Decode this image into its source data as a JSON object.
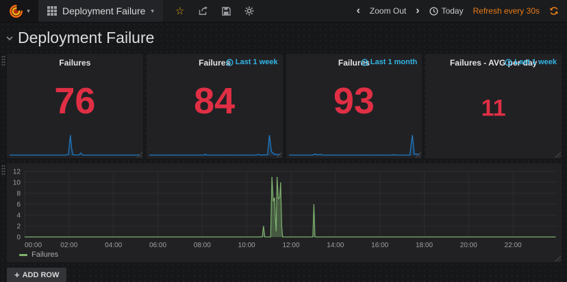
{
  "navbar": {
    "dashboard_title": "Deployment Failure",
    "zoom_out_label": "Zoom Out",
    "today_label": "Today",
    "refresh_label": "Refresh every 30s"
  },
  "page": {
    "title": "Deployment Failure",
    "add_row_label": "ADD ROW"
  },
  "icons": {
    "plus": "+",
    "caret": "▾",
    "chevron_left": "‹",
    "chevron_right": "›",
    "star": "☆"
  },
  "colors": {
    "stat_value_red": "#e02f44",
    "badge_cyan": "#33b5e5",
    "refresh_orange": "#eb7b18",
    "series_green": "#7eb26d",
    "spark_blue": "#1f78c1",
    "panel_bg": "#212124",
    "page_bg": "#161719"
  },
  "chart_data": [
    {
      "type": "stat",
      "panel_title": "Failures",
      "time_badge": "",
      "value": "76",
      "spark_color": "#1f78c1",
      "spark_points": [
        [
          0,
          0.03
        ],
        [
          0.43,
          0.03
        ],
        [
          0.45,
          0.06
        ],
        [
          0.465,
          1
        ],
        [
          0.475,
          0.35
        ],
        [
          0.485,
          0.05
        ],
        [
          0.53,
          0.03
        ],
        [
          0.545,
          0.13
        ],
        [
          0.56,
          0.03
        ],
        [
          1,
          0.03
        ]
      ]
    },
    {
      "type": "stat",
      "panel_title": "Failures",
      "time_badge": "Last 1 week",
      "value": "84",
      "spark_color": "#1f78c1",
      "spark_points": [
        [
          0,
          0.03
        ],
        [
          0.42,
          0.03
        ],
        [
          0.43,
          0.08
        ],
        [
          0.44,
          0.03
        ],
        [
          0.82,
          0.03
        ],
        [
          0.835,
          0.07
        ],
        [
          0.85,
          0.03
        ],
        [
          0.905,
          0.05
        ],
        [
          0.92,
          1
        ],
        [
          0.935,
          0.2
        ],
        [
          0.96,
          0.06
        ],
        [
          1,
          0.06
        ]
      ]
    },
    {
      "type": "stat",
      "panel_title": "Failures",
      "time_badge": "Last 1 month",
      "value": "93",
      "spark_color": "#1f78c1",
      "spark_points": [
        [
          0,
          0.03
        ],
        [
          0.18,
          0.03
        ],
        [
          0.2,
          0.08
        ],
        [
          0.22,
          0.04
        ],
        [
          0.24,
          0.06
        ],
        [
          0.26,
          0.03
        ],
        [
          0.79,
          0.03
        ],
        [
          0.8,
          0.06
        ],
        [
          0.81,
          0.03
        ],
        [
          0.925,
          0.03
        ],
        [
          0.945,
          1
        ],
        [
          0.96,
          0.08
        ],
        [
          1,
          0.08
        ]
      ]
    },
    {
      "type": "stat",
      "panel_title": "Failures - AVG per day",
      "time_badge": "Last 1 week",
      "value": "11",
      "spark_color": "#1f78c1",
      "spark_points": null
    },
    {
      "type": "line",
      "title": "",
      "xlim_hours": [
        0,
        24
      ],
      "ylim": [
        0,
        12
      ],
      "yticks": [
        0,
        2,
        4,
        6,
        8,
        10,
        12
      ],
      "xticks": [
        "00:00",
        "02:00",
        "04:00",
        "06:00",
        "08:00",
        "10:00",
        "12:00",
        "14:00",
        "16:00",
        "18:00",
        "20:00",
        "22:00"
      ],
      "grid": true,
      "legend": {
        "position": "bottom-left"
      },
      "series": [
        {
          "name": "Failures",
          "color": "#7eb26d",
          "points_hours_value": [
            [
              0,
              0
            ],
            [
              10.7,
              0
            ],
            [
              10.76,
              2
            ],
            [
              10.82,
              0
            ],
            [
              11.08,
              0
            ],
            [
              11.14,
              11
            ],
            [
              11.2,
              6.5
            ],
            [
              11.26,
              7.2
            ],
            [
              11.3,
              3
            ],
            [
              11.33,
              1
            ],
            [
              11.37,
              11
            ],
            [
              11.43,
              7
            ],
            [
              11.49,
              7.2
            ],
            [
              11.53,
              10
            ],
            [
              11.58,
              2
            ],
            [
              11.62,
              0
            ],
            [
              12.98,
              0
            ],
            [
              13.03,
              6
            ],
            [
              13.08,
              0
            ],
            [
              23.92,
              0
            ]
          ]
        }
      ]
    }
  ]
}
